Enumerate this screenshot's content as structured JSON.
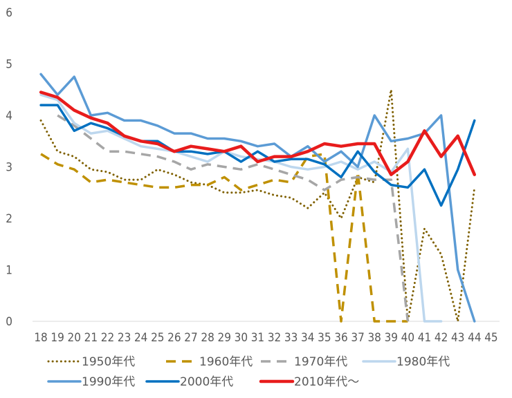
{
  "chart_data": {
    "type": "line",
    "title": "",
    "xlabel": "",
    "ylabel": "",
    "ylim": [
      0,
      6
    ],
    "y_ticks": [
      "0",
      "1",
      "2",
      "3",
      "4",
      "5",
      "6"
    ],
    "x_ticks": [
      "18",
      "19",
      "20",
      "21",
      "22",
      "23",
      "24",
      "25",
      "26",
      "27",
      "28",
      "29",
      "30",
      "31",
      "32",
      "33",
      "34",
      "35",
      "36",
      "37",
      "38",
      "39",
      "40",
      "41",
      "42",
      "43",
      "44",
      "45"
    ],
    "grid": false,
    "legend_position": "bottom",
    "series": [
      {
        "name": "1950年代",
        "color": "#7f6000",
        "style": "dotted",
        "values": [
          3.9,
          3.3,
          3.2,
          2.95,
          2.9,
          2.75,
          2.75,
          2.95,
          2.85,
          2.7,
          2.65,
          2.5,
          2.5,
          2.55,
          2.45,
          2.4,
          2.2,
          2.5,
          2.0,
          2.8,
          2.7,
          4.5,
          0.0,
          1.8,
          1.3,
          0.0,
          2.6,
          null
        ]
      },
      {
        "name": "1960年代",
        "color": "#bf9000",
        "style": "dashed",
        "values": [
          3.25,
          3.05,
          2.95,
          2.7,
          2.75,
          2.7,
          2.65,
          2.6,
          2.6,
          2.65,
          2.65,
          2.8,
          2.55,
          2.65,
          2.75,
          2.7,
          3.2,
          3.25,
          0.0,
          2.9,
          0.0,
          0.0,
          0.0,
          null,
          null,
          null,
          null,
          null
        ]
      },
      {
        "name": "1970年代",
        "color": "#a6a6a6",
        "style": "dashed",
        "values": [
          null,
          4.0,
          3.8,
          3.55,
          3.3,
          3.3,
          3.25,
          3.2,
          3.1,
          2.95,
          3.05,
          3.0,
          2.95,
          3.05,
          2.95,
          2.85,
          2.75,
          2.55,
          2.75,
          2.8,
          2.75,
          2.75,
          0.0,
          null,
          null,
          null,
          null,
          null
        ]
      },
      {
        "name": "1980年代",
        "color": "#bdd7ee",
        "style": "solid",
        "values": [
          4.4,
          4.3,
          3.85,
          3.65,
          3.7,
          3.55,
          3.4,
          3.35,
          3.3,
          3.2,
          3.1,
          3.3,
          3.2,
          3.15,
          3.1,
          3.0,
          2.95,
          3.0,
          3.1,
          2.95,
          3.1,
          2.9,
          3.35,
          0.0,
          0.0,
          null,
          null,
          null
        ]
      },
      {
        "name": "1990年代",
        "color": "#5b9bd5",
        "style": "solid",
        "values": [
          4.8,
          4.4,
          4.75,
          4.0,
          4.05,
          3.9,
          3.9,
          3.8,
          3.65,
          3.65,
          3.55,
          3.55,
          3.5,
          3.4,
          3.45,
          3.2,
          3.4,
          3.1,
          3.3,
          3.0,
          4.0,
          3.5,
          3.55,
          3.65,
          4.0,
          1.0,
          0.0,
          null
        ]
      },
      {
        "name": "2000年代",
        "color": "#0070c0",
        "style": "solid",
        "values": [
          4.2,
          4.2,
          3.7,
          3.85,
          3.75,
          3.6,
          3.5,
          3.5,
          3.3,
          3.3,
          3.25,
          3.3,
          3.1,
          3.3,
          3.1,
          3.15,
          3.15,
          3.05,
          2.8,
          3.3,
          2.9,
          2.65,
          2.6,
          2.95,
          2.25,
          2.95,
          3.9,
          null
        ]
      },
      {
        "name": "2010年代～",
        "color": "#e81c1c",
        "style": "solid",
        "values": [
          4.45,
          4.35,
          4.1,
          3.95,
          3.85,
          3.6,
          3.5,
          3.45,
          3.3,
          3.4,
          3.35,
          3.3,
          3.4,
          3.1,
          3.2,
          3.2,
          3.3,
          3.45,
          3.4,
          3.45,
          3.45,
          2.85,
          3.1,
          3.7,
          3.2,
          3.6,
          2.85,
          null
        ]
      }
    ]
  }
}
